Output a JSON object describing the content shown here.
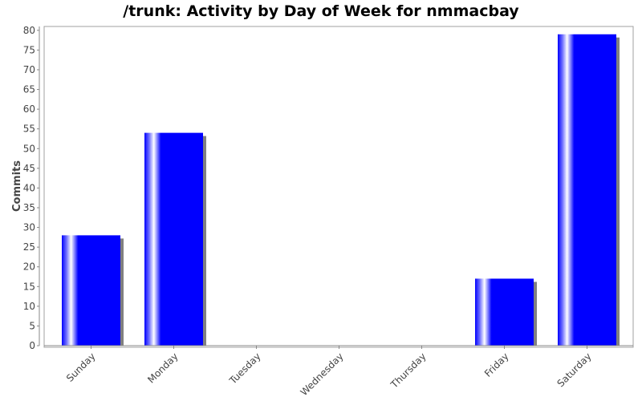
{
  "title": "/trunk: Activity by Day of Week for nmmacbay",
  "colors": {
    "bar": "#0000ff",
    "bar_highlight": "#ffffff",
    "shadow": "#808080",
    "axis": "#888888",
    "plot_border": "#a0a0a0",
    "text": "#444444"
  },
  "chart_data": {
    "type": "bar",
    "title": "/trunk: Activity by Day of Week for nmmacbay",
    "xlabel": "",
    "ylabel": "Commits",
    "ylim": [
      0,
      82
    ],
    "yticks": [
      0,
      5,
      10,
      15,
      20,
      25,
      30,
      35,
      40,
      45,
      50,
      55,
      60,
      65,
      70,
      75,
      80
    ],
    "categories": [
      "Sunday",
      "Monday",
      "Tuesday",
      "Wednesday",
      "Thursday",
      "Friday",
      "Saturday"
    ],
    "values": [
      28,
      54,
      0,
      0,
      0,
      17,
      79
    ],
    "grid": false,
    "legend": "none"
  }
}
